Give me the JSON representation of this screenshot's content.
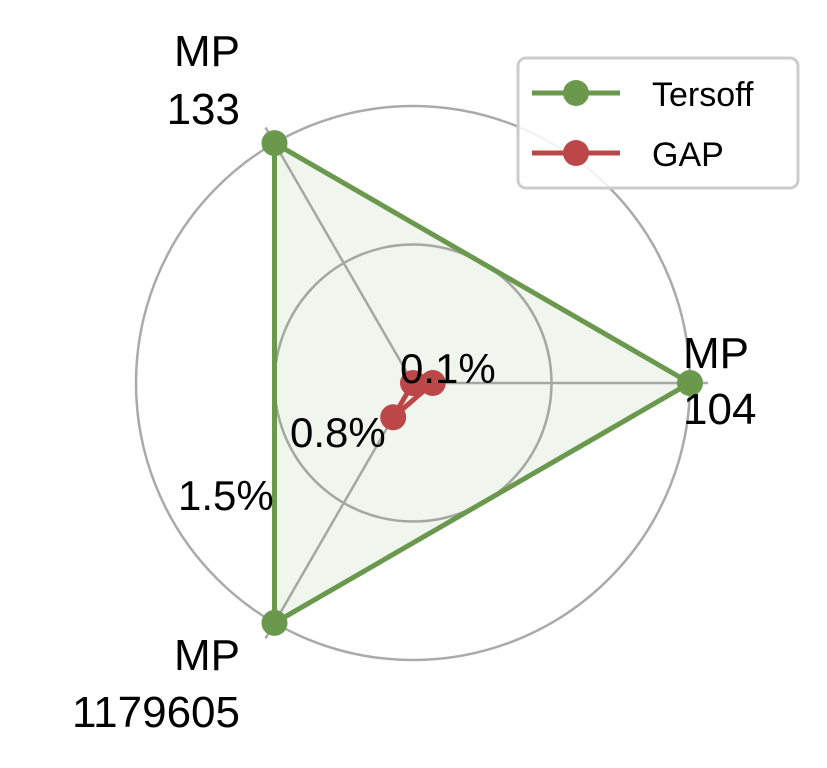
{
  "chart_data": {
    "type": "radar",
    "axes": [
      {
        "label_lines": [
          "MP",
          "104"
        ]
      },
      {
        "label_lines": [
          "MP",
          "133"
        ]
      },
      {
        "label_lines": [
          "MP",
          "1179605"
        ]
      }
    ],
    "radial_ticks": [
      "0.1%",
      "0.8%",
      "1.5%"
    ],
    "radial_tick_values": [
      0.1,
      0.8,
      1.5
    ],
    "radial_range": [
      0.1,
      1.5
    ],
    "grid": true,
    "legend_position": "top-right",
    "series": [
      {
        "name": "Tersoff",
        "color": "#6a994e",
        "fill": true,
        "values": [
          1.5,
          1.5,
          1.5
        ]
      },
      {
        "name": "GAP",
        "color": "#bc4749",
        "fill": false,
        "values": [
          0.2,
          0.1,
          0.3
        ]
      }
    ],
    "grid_color": "#aaaaaa"
  }
}
